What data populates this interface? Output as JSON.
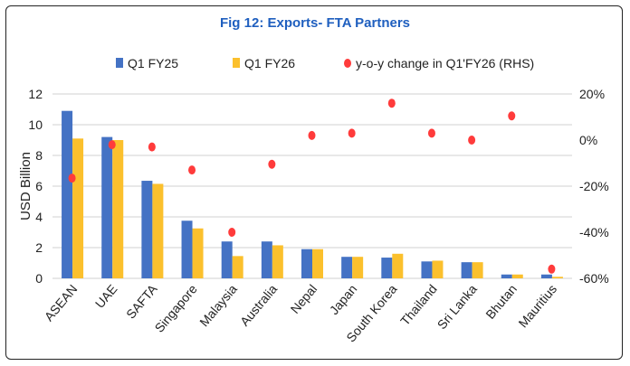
{
  "chart_data": {
    "type": "bar",
    "title": "Fig 12: Exports- FTA Partners",
    "ylabel": "USD Billion",
    "ylim": [
      0,
      12
    ],
    "yticks": [
      0,
      2,
      4,
      6,
      8,
      10,
      12
    ],
    "y2lim": [
      -60,
      20
    ],
    "y2ticks": [
      "-60%",
      "-40%",
      "-20%",
      "0%",
      "20%"
    ],
    "y2tick_values": [
      -60,
      -40,
      -20,
      0,
      20
    ],
    "categories": [
      "ASEAN",
      "UAE",
      "SAFTA",
      "Singapore",
      "Malaysia",
      "Australia",
      "Nepal",
      "Japan",
      "South Korea",
      "Thailand",
      "Sri Lanka",
      "Bhutan",
      "Mauritius"
    ],
    "series": [
      {
        "name": "Q1 FY25",
        "type": "bar",
        "color": "#4472c4",
        "values": [
          10.9,
          9.2,
          6.35,
          3.75,
          2.4,
          2.4,
          1.9,
          1.4,
          1.35,
          1.1,
          1.05,
          0.25,
          0.25
        ]
      },
      {
        "name": "Q1 FY26",
        "type": "bar",
        "color": "#fbc02d",
        "values": [
          9.1,
          9.0,
          6.15,
          3.25,
          1.45,
          2.15,
          1.9,
          1.4,
          1.6,
          1.15,
          1.05,
          0.25,
          0.1
        ]
      },
      {
        "name": "y-o-y change in Q1'FY26  (RHS)",
        "type": "scatter",
        "axis": "right",
        "color": "#ff3b3b",
        "values": [
          -16.5,
          -2,
          -3,
          -13,
          -40,
          -10.5,
          2,
          3,
          16,
          3,
          0,
          10.5,
          -56
        ]
      }
    ],
    "grid": true,
    "legend": "top"
  }
}
